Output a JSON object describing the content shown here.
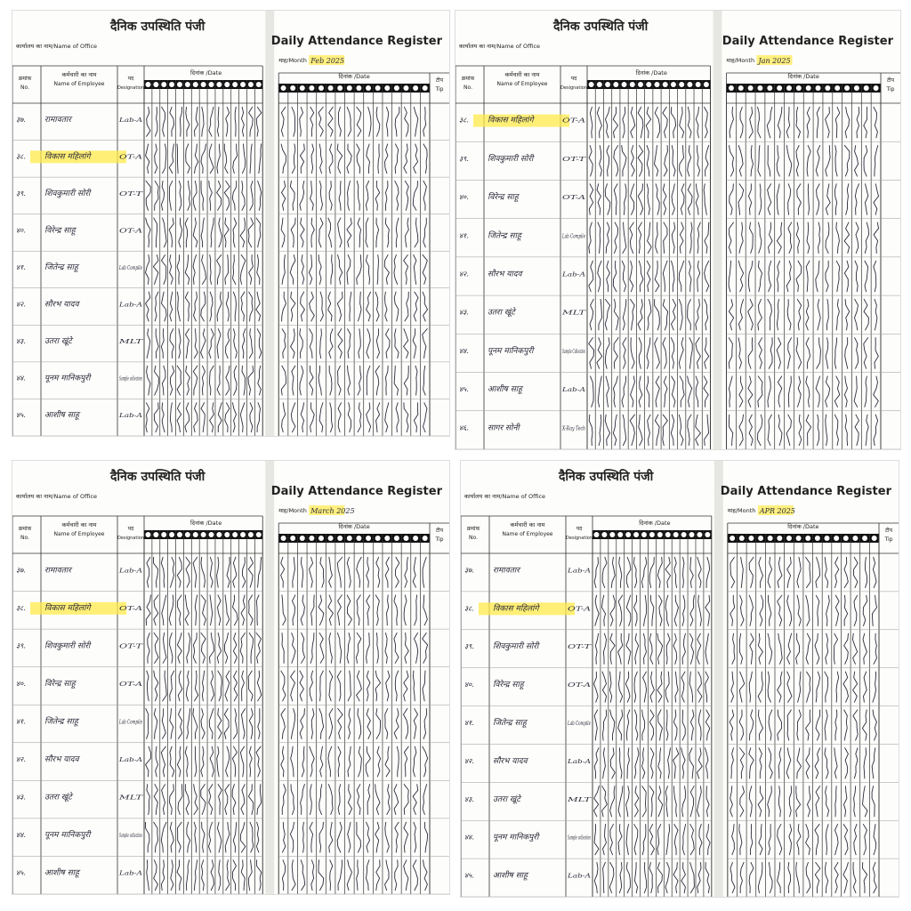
{
  "labels": {
    "title_hi": "दैनिक उपस्थिति पंजी",
    "office": "कार्यालय का नाम/Name of Office",
    "title_en": "Daily Attendance Register",
    "month": "माह/Month",
    "no_hi": "क्रमांक",
    "no_en": "No.",
    "name_hi": "कर्मचारी का नाम",
    "name_en": "Name of Employee",
    "desig_hi": "पद",
    "desig_en": "Designation",
    "date": "दिनांक /Date",
    "tip_hi": "टीप",
    "tip_en": "Tip"
  },
  "panels": [
    {
      "month": "Feb 2025",
      "rows": [
        [
          "३७.",
          "रामावतार",
          "Lab-A"
        ],
        [
          "३८.",
          "विकास महिलांगे",
          "OT-A"
        ],
        [
          "३९.",
          "शिवकुमारी सोरी",
          "OT-T"
        ],
        [
          "४०.",
          "विरेन्द्र साहू",
          "OT-A"
        ],
        [
          "४१.",
          "जितेन्द्र साहू",
          "Lab Compile"
        ],
        [
          "४२.",
          "सौरभ यादव",
          "Lab-A"
        ],
        [
          "४३.",
          "उतरा खूंटे",
          "MLT"
        ],
        [
          "४४.",
          "पूनम मानिकपुरी",
          "Sample collection"
        ],
        [
          "४५.",
          "आशीष साहू",
          "Lab-A"
        ]
      ]
    },
    {
      "month": "Jan 2025",
      "rows": [
        [
          "३८.",
          "विकास महिलांगे",
          "OT-A"
        ],
        [
          "३९.",
          "शिवकुमारी सोरी",
          "OT-T"
        ],
        [
          "४०.",
          "विरेन्द्र साहू",
          "OT-A"
        ],
        [
          "४१.",
          "जितेन्द्र साहू",
          "Lab Compile"
        ],
        [
          "४२.",
          "सौरभ यादव",
          "Lab-A"
        ],
        [
          "४३.",
          "उतरा खूंटे",
          "MLT"
        ],
        [
          "४४.",
          "पूनम मानिकपुरी",
          "Sample Collection"
        ],
        [
          "४५.",
          "आशीष साहू",
          "Lab-A"
        ],
        [
          "४६.",
          "सागर सोनी",
          "X-Ray Tech"
        ]
      ]
    },
    {
      "month": "March 2025",
      "rows": [
        [
          "३७.",
          "रामावतार",
          "Lab-A"
        ],
        [
          "३८.",
          "विकास महिलांगे",
          "OT-A"
        ],
        [
          "३९.",
          "शिवकुमारी सोरी",
          "OT-T"
        ],
        [
          "४०.",
          "विरेन्द्र साहू",
          "OT-A"
        ],
        [
          "४१.",
          "जितेन्द्र साहू",
          "Lab Compile"
        ],
        [
          "४२.",
          "सौरभ यादव",
          "Lab-A"
        ],
        [
          "४३.",
          "उतरा खूंटे",
          "MLT"
        ],
        [
          "४४.",
          "पूनम मानिकपुरी",
          "Sample collection"
        ],
        [
          "४५.",
          "आशीष साहू",
          "Lab-A"
        ]
      ]
    },
    {
      "month": "APR 2025",
      "rows": [
        [
          "३७.",
          "रामावतार",
          "Lab-A"
        ],
        [
          "३८.",
          "विकास महिलांगे",
          "OT-A"
        ],
        [
          "३९.",
          "शिवकुमारी सोरी",
          "OT-T"
        ],
        [
          "४०.",
          "विरेन्द्र साहू",
          "OT-A"
        ],
        [
          "४१.",
          "जितेन्द्र साहू",
          "Lab Compile"
        ],
        [
          "४२.",
          "सौरभ यादव",
          "Lab-A"
        ],
        [
          "४३.",
          "उतरा खूंटे",
          "MLT"
        ],
        [
          "४४.",
          "पूनम मानिकपुरी",
          "Sample collection"
        ],
        [
          "४५.",
          "आशीष साहू",
          "Lab-A"
        ]
      ]
    }
  ]
}
